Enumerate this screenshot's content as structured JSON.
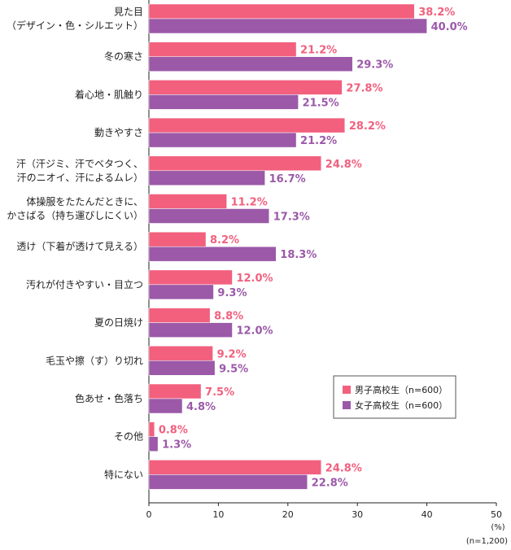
{
  "chart_data": {
    "type": "bar",
    "orientation": "horizontal",
    "categories": [
      [
        "見た目",
        "（デザイン・色・シルエット）"
      ],
      [
        "冬の寒さ"
      ],
      [
        "着心地・肌触り"
      ],
      [
        "動きやすさ"
      ],
      [
        "汗（汗ジミ、汗でベタつく、",
        "汗のニオイ、汗によるムレ）"
      ],
      [
        "体操服をたたんだときに、",
        "かさばる（持ち運びしにくい）"
      ],
      [
        "透け（下着が透けて見える）"
      ],
      [
        "汚れが付きやすい・目立つ"
      ],
      [
        "夏の日焼け"
      ],
      [
        "毛玉や擦（す）り切れ"
      ],
      [
        "色あせ・色落ち"
      ],
      [
        "その他"
      ],
      [
        "特にない"
      ]
    ],
    "series": [
      {
        "name": "男子高校生（n=600）",
        "color": "#f2607e",
        "values": [
          38.2,
          21.2,
          27.8,
          28.2,
          24.8,
          11.2,
          8.2,
          12.0,
          8.8,
          9.2,
          7.5,
          0.8,
          24.8
        ]
      },
      {
        "name": "女子高校生（n=600）",
        "color": "#9b59a8",
        "values": [
          40.0,
          29.3,
          21.5,
          21.2,
          16.7,
          17.3,
          18.3,
          9.3,
          12.0,
          9.5,
          4.8,
          1.3,
          22.8
        ]
      }
    ],
    "xlim": [
      0,
      50
    ],
    "xticks": [
      0,
      10,
      20,
      30,
      40,
      50
    ],
    "unit_label": "(%)",
    "sample_note": "(n=1,200)",
    "legend_position": "bottom-right"
  }
}
